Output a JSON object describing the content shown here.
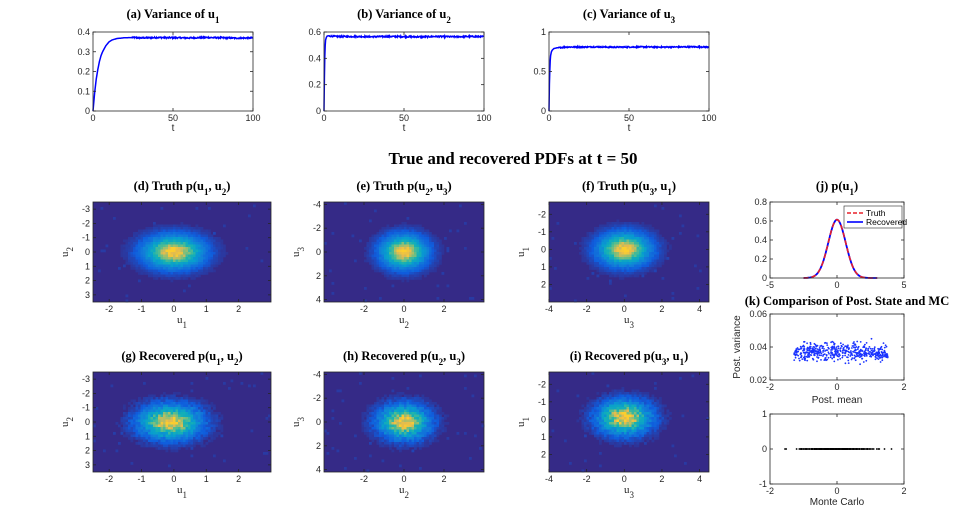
{
  "figure_title": "True and recovered PDFs at t = 50",
  "colors": {
    "series_blue": "#0000ff",
    "truth_red": "#e8212a",
    "scatter_blue": "#1a33ff",
    "scatter_black": "#000000",
    "heat_background": "#352a87",
    "heat_peak": "#f9c033"
  },
  "chart_data": [
    {
      "id": "a",
      "type": "line",
      "title_prefix": "(a)  Variance of u",
      "title_sub": "1",
      "xlabel": "t",
      "ylabel": "",
      "xlim": [
        0,
        100
      ],
      "ylim": [
        0,
        0.4
      ],
      "xticks": [
        "0",
        "50",
        "100"
      ],
      "yticks": [
        "0",
        "0.1",
        "0.2",
        "0.3",
        "0.4"
      ],
      "steady_value": 0.37,
      "rise_time": 8,
      "series": [
        {
          "name": "",
          "color": "#0000ff",
          "x": [
            0,
            1,
            2,
            3,
            4,
            5,
            6,
            8,
            10,
            12,
            15,
            20,
            25,
            30,
            40,
            50,
            60,
            70,
            80,
            90,
            100
          ],
          "y": [
            0,
            0.09,
            0.16,
            0.21,
            0.25,
            0.28,
            0.3,
            0.33,
            0.35,
            0.36,
            0.367,
            0.371,
            0.372,
            0.37,
            0.372,
            0.371,
            0.37,
            0.372,
            0.371,
            0.369,
            0.37
          ]
        }
      ]
    },
    {
      "id": "b",
      "type": "line",
      "title_prefix": "(b)  Variance of u",
      "title_sub": "2",
      "xlabel": "t",
      "ylabel": "",
      "xlim": [
        0,
        100
      ],
      "ylim": [
        0,
        0.6
      ],
      "xticks": [
        "0",
        "50",
        "100"
      ],
      "yticks": [
        "0",
        "0.2",
        "0.4",
        "0.6"
      ],
      "steady_value": 0.565,
      "rise_time": 0.8,
      "series": [
        {
          "name": "",
          "color": "#0000ff",
          "x": [
            0,
            0.3,
            0.6,
            1,
            1.5,
            2,
            3,
            5,
            10,
            20,
            30,
            40,
            50,
            60,
            70,
            80,
            90,
            100
          ],
          "y": [
            0,
            0.3,
            0.47,
            0.54,
            0.56,
            0.57,
            0.57,
            0.568,
            0.565,
            0.566,
            0.564,
            0.566,
            0.565,
            0.563,
            0.566,
            0.564,
            0.566,
            0.565
          ]
        }
      ]
    },
    {
      "id": "c",
      "type": "line",
      "title_prefix": "(c)  Variance of u",
      "title_sub": "3",
      "xlabel": "t",
      "ylabel": "",
      "xlim": [
        0,
        100
      ],
      "ylim": [
        0,
        1
      ],
      "xticks": [
        "0",
        "50",
        "100"
      ],
      "yticks": [
        "0",
        "0.5",
        "1"
      ],
      "steady_value": 0.81,
      "rise_time": 2,
      "series": [
        {
          "name": "",
          "color": "#0000ff",
          "x": [
            0,
            0.3,
            0.7,
            1,
            1.5,
            2,
            3,
            5,
            8,
            10,
            20,
            30,
            40,
            50,
            60,
            70,
            80,
            90,
            100
          ],
          "y": [
            0,
            0.4,
            0.62,
            0.7,
            0.75,
            0.77,
            0.79,
            0.8,
            0.805,
            0.81,
            0.81,
            0.812,
            0.808,
            0.81,
            0.811,
            0.809,
            0.81,
            0.812,
            0.81
          ]
        }
      ]
    },
    {
      "id": "d",
      "type": "heatmap",
      "title_prefix": "(d)  Truth p(u",
      "title_mid": ", u",
      "title_suffix": ")",
      "title_sub1": "1",
      "title_sub2": "2",
      "xlabel_base": "u",
      "xlabel_sub": "1",
      "ylabel_base": "u",
      "ylabel_sub": "2",
      "xlim": [
        -2.5,
        3
      ],
      "ylim": [
        -3.5,
        3.5
      ],
      "y_reversed": true,
      "xticks": [
        "-2",
        "-1",
        "0",
        "1",
        "2"
      ],
      "xtick_values": [
        -2,
        -1,
        0,
        1,
        2
      ],
      "yticks": [
        "-3",
        "-2",
        "-1",
        "0",
        "1",
        "2",
        "3"
      ],
      "ytick_values": [
        -3,
        -2,
        -1,
        0,
        1,
        2,
        3
      ],
      "center": [
        0,
        0
      ],
      "spread": [
        0.61,
        0.75
      ],
      "noise": 0.08
    },
    {
      "id": "e",
      "type": "heatmap",
      "title_prefix": "(e)  Truth p(u",
      "title_mid": ", u",
      "title_suffix": ")",
      "title_sub1": "2",
      "title_sub2": "3",
      "xlabel_base": "u",
      "xlabel_sub": "2",
      "ylabel_base": "u",
      "ylabel_sub": "3",
      "xlim": [
        -4,
        4
      ],
      "ylim": [
        -4.2,
        4.2
      ],
      "y_reversed": true,
      "xticks": [
        "-2",
        "0",
        "2"
      ],
      "xtick_values": [
        -2,
        0,
        2
      ],
      "yticks": [
        "-4",
        "-2",
        "0",
        "2",
        "4"
      ],
      "ytick_values": [
        -4,
        -2,
        0,
        2,
        4
      ],
      "center": [
        0,
        0
      ],
      "spread": [
        0.75,
        0.9
      ],
      "noise": 0.08
    },
    {
      "id": "f",
      "type": "heatmap",
      "title_prefix": "(f)  Truth p(u",
      "title_mid": ", u",
      "title_suffix": ")",
      "title_sub1": "3",
      "title_sub2": "1",
      "xlabel_base": "u",
      "xlabel_sub": "3",
      "ylabel_base": "u",
      "ylabel_sub": "1",
      "xlim": [
        -4,
        4.5
      ],
      "ylim": [
        -2.7,
        3
      ],
      "y_reversed": true,
      "xticks": [
        "-4",
        "-2",
        "0",
        "2",
        "4"
      ],
      "xtick_values": [
        -4,
        -2,
        0,
        2,
        4
      ],
      "yticks": [
        "-2",
        "-1",
        "0",
        "1",
        "2"
      ],
      "ytick_values": [
        -2,
        -1,
        0,
        1,
        2
      ],
      "center": [
        0,
        0
      ],
      "spread": [
        0.9,
        0.61
      ],
      "noise": 0.08
    },
    {
      "id": "g",
      "type": "heatmap",
      "title_prefix": "(g)  Recovered p(u",
      "title_mid": ", u",
      "title_suffix": ")",
      "title_sub1": "1",
      "title_sub2": "2",
      "xlabel_base": "u",
      "xlabel_sub": "1",
      "ylabel_base": "u",
      "ylabel_sub": "2",
      "xlim": [
        -2.5,
        3
      ],
      "ylim": [
        -3.5,
        3.5
      ],
      "y_reversed": true,
      "xticks": [
        "-2",
        "-1",
        "0",
        "1",
        "2"
      ],
      "xtick_values": [
        -2,
        -1,
        0,
        1,
        2
      ],
      "yticks": [
        "-3",
        "-2",
        "-1",
        "0",
        "1",
        "2",
        "3"
      ],
      "ytick_values": [
        -3,
        -2,
        -1,
        0,
        1,
        2,
        3
      ],
      "center": [
        -0.1,
        0
      ],
      "spread": [
        0.61,
        0.75
      ],
      "noise": 0.16
    },
    {
      "id": "h",
      "type": "heatmap",
      "title_prefix": "(h)  Recovered p(u",
      "title_mid": ", u",
      "title_suffix": ")",
      "title_sub1": "2",
      "title_sub2": "3",
      "xlabel_base": "u",
      "xlabel_sub": "2",
      "ylabel_base": "u",
      "ylabel_sub": "3",
      "xlim": [
        -4,
        4
      ],
      "ylim": [
        -4.2,
        4.2
      ],
      "y_reversed": true,
      "xticks": [
        "-2",
        "0",
        "2"
      ],
      "xtick_values": [
        -2,
        0,
        2
      ],
      "yticks": [
        "-4",
        "-2",
        "0",
        "2",
        "4"
      ],
      "ytick_values": [
        -4,
        -2,
        0,
        2,
        4
      ],
      "center": [
        0,
        0
      ],
      "spread": [
        0.8,
        0.9
      ],
      "noise": 0.16
    },
    {
      "id": "i",
      "type": "heatmap",
      "title_prefix": "(i)  Recovered p(u",
      "title_mid": ", u",
      "title_suffix": ")",
      "title_sub1": "3",
      "title_sub2": "1",
      "xlabel_base": "u",
      "xlabel_sub": "3",
      "ylabel_base": "u",
      "ylabel_sub": "1",
      "xlim": [
        -4,
        4.5
      ],
      "ylim": [
        -2.7,
        3
      ],
      "y_reversed": true,
      "xticks": [
        "-4",
        "-2",
        "0",
        "2",
        "4"
      ],
      "xtick_values": [
        -4,
        -2,
        0,
        2,
        4
      ],
      "yticks": [
        "-2",
        "-1",
        "0",
        "1",
        "2"
      ],
      "ytick_values": [
        -2,
        -1,
        0,
        1,
        2
      ],
      "center": [
        0,
        -0.1
      ],
      "spread": [
        0.9,
        0.61
      ],
      "noise": 0.16
    },
    {
      "id": "j",
      "type": "line",
      "title_prefix": "(j)  p(u",
      "title_sub": "1",
      "title_suffix": ")",
      "xlabel": "",
      "ylabel": "",
      "xlim": [
        -5,
        5
      ],
      "ylim": [
        0,
        0.8
      ],
      "xticks": [
        "-5",
        "0",
        "5"
      ],
      "xtick_values": [
        -5,
        0,
        5
      ],
      "yticks": [
        "0",
        "0.2",
        "0.4",
        "0.6",
        "0.8"
      ],
      "ytick_values": [
        0,
        0.2,
        0.4,
        0.6,
        0.8
      ],
      "legend": [
        "Truth",
        "Recovered"
      ],
      "legend_position": "top-right",
      "gaussian_mean": 0,
      "gaussian_sd": 0.65,
      "x_range": [
        -2.5,
        3
      ],
      "series": [
        {
          "name": "Truth",
          "color": "#e8212a",
          "dash": true,
          "x": [
            -2.5,
            -2,
            -1.5,
            -1,
            -0.5,
            0,
            0.5,
            1,
            1.5,
            2,
            2.5,
            3
          ],
          "y": [
            0.0,
            0.005,
            0.043,
            0.19,
            0.45,
            0.61,
            0.45,
            0.19,
            0.043,
            0.005,
            0.0,
            0.0
          ]
        },
        {
          "name": "Recovered",
          "color": "#0000ff",
          "dash": false,
          "x": [
            -2.5,
            -2,
            -1.5,
            -1,
            -0.5,
            0,
            0.5,
            1,
            1.5,
            2,
            2.5,
            3
          ],
          "y": [
            0.0,
            0.005,
            0.043,
            0.19,
            0.45,
            0.61,
            0.45,
            0.19,
            0.043,
            0.005,
            0.0,
            0.0
          ]
        }
      ]
    },
    {
      "id": "k1",
      "type": "scatter",
      "title": "(k)  Comparison of Post. State and MC",
      "xlabel": "Post. mean",
      "ylabel": "Post. variance",
      "xlim": [
        -2,
        2
      ],
      "ylim": [
        0.02,
        0.06
      ],
      "xticks": [
        "-2",
        "0",
        "2"
      ],
      "xtick_values": [
        -2,
        0,
        2
      ],
      "yticks": [
        "0.02",
        "0.04",
        "0.06"
      ],
      "ytick_values": [
        0.02,
        0.04,
        0.06
      ],
      "x_range": [
        -1.6,
        1.6
      ],
      "y_mean": 0.038,
      "y_sd": 0.003,
      "n_points": 500,
      "color": "#1a33ff"
    },
    {
      "id": "k2",
      "type": "scatter",
      "xlabel": "Monte Carlo",
      "ylabel": "",
      "xlim": [
        -2,
        2
      ],
      "ylim": [
        -1,
        1
      ],
      "xticks": [
        "-2",
        "0",
        "2"
      ],
      "xtick_values": [
        -2,
        0,
        2
      ],
      "yticks": [
        "-1",
        "0",
        "1"
      ],
      "ytick_values": [
        -1,
        0,
        1
      ],
      "x_range": [
        -1.6,
        1.7
      ],
      "y_value": 0,
      "n_points": 260,
      "color": "#000000"
    }
  ]
}
